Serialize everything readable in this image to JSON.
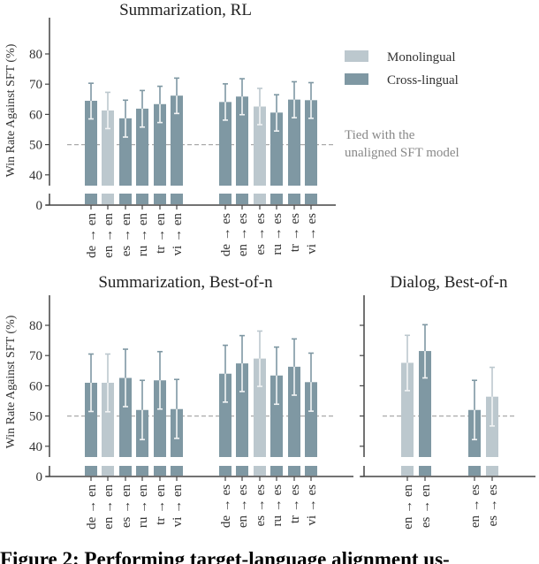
{
  "colors": {
    "cross_lingual": "#7f98a3",
    "monolingual": "#bcc8ce",
    "reference_line": "#aaaaaa"
  },
  "legend": {
    "monolingual": "Monolingual",
    "cross_lingual": "Cross-lingual"
  },
  "annotation": {
    "line1": "Tied with the",
    "line2": "unaligned SFT model"
  },
  "caption": "Figure 2: Performing target-language alignment us-",
  "chart_data": [
    {
      "type": "bar",
      "title": "Summarization, RL",
      "ylabel": "Win Rate Against SFT (%)",
      "yticks": [
        0,
        40,
        50,
        60,
        70,
        80
      ],
      "axis_break": true,
      "reference_line": 50,
      "groups": [
        {
          "categories": [
            "de → en",
            "en → en",
            "es → en",
            "ru → en",
            "tr → en",
            "vi → en"
          ],
          "values": [
            64.5,
            61.3,
            58.7,
            61.9,
            63.4,
            66.2
          ],
          "ci_low": [
            58.5,
            55.3,
            52.5,
            55.8,
            57.3,
            60.3
          ],
          "ci_high": [
            70.3,
            67.3,
            64.7,
            67.9,
            69.3,
            72.0
          ],
          "type": [
            "cross",
            "mono",
            "cross",
            "cross",
            "cross",
            "cross"
          ]
        },
        {
          "categories": [
            "de → es",
            "en → es",
            "es → es",
            "ru → es",
            "tr → es",
            "vi → es"
          ],
          "values": [
            64.1,
            65.9,
            62.6,
            60.6,
            64.9,
            64.7
          ],
          "ci_low": [
            58.1,
            59.9,
            56.6,
            54.5,
            58.9,
            58.7
          ],
          "ci_high": [
            70.1,
            71.8,
            68.6,
            66.5,
            70.8,
            70.5
          ],
          "type": [
            "cross",
            "cross",
            "mono",
            "cross",
            "cross",
            "cross"
          ]
        }
      ]
    },
    {
      "type": "bar",
      "title": "Summarization, Best-of-n",
      "ylabel": "Win Rate Against SFT (%)",
      "yticks": [
        0,
        40,
        50,
        60,
        70,
        80
      ],
      "axis_break": true,
      "reference_line": 50,
      "groups": [
        {
          "categories": [
            "de → en",
            "en → en",
            "es → en",
            "ru → en",
            "tr → en",
            "vi → en"
          ],
          "values": [
            61.0,
            61.0,
            62.6,
            52.0,
            61.8,
            52.3
          ],
          "ci_low": [
            51.5,
            51.4,
            53.1,
            42.2,
            52.3,
            42.6
          ],
          "ci_high": [
            70.5,
            70.5,
            72.1,
            61.8,
            71.3,
            62.1
          ],
          "type": [
            "cross",
            "mono",
            "cross",
            "cross",
            "cross",
            "cross"
          ]
        },
        {
          "categories": [
            "de → es",
            "en → es",
            "es → es",
            "ru → es",
            "tr → es",
            "vi → es"
          ],
          "values": [
            64.0,
            67.4,
            69.0,
            63.4,
            66.3,
            61.2
          ],
          "ci_low": [
            54.6,
            58.1,
            59.8,
            53.9,
            56.9,
            51.6
          ],
          "ci_high": [
            73.4,
            76.6,
            78.1,
            72.8,
            75.5,
            70.8
          ],
          "type": [
            "cross",
            "cross",
            "mono",
            "cross",
            "cross",
            "cross"
          ]
        }
      ]
    },
    {
      "type": "bar",
      "title": "Dialog, Best-of-n",
      "axis_break": true,
      "reference_line": 50,
      "groups": [
        {
          "categories": [
            "en → en",
            "es → en"
          ],
          "values": [
            67.6,
            71.5
          ],
          "ci_low": [
            58.4,
            62.6
          ],
          "ci_high": [
            76.7,
            80.2
          ],
          "type": [
            "mono",
            "cross"
          ]
        },
        {
          "categories": [
            "en → es",
            "es → es"
          ],
          "values": [
            52.0,
            56.4
          ],
          "ci_low": [
            42.2,
            46.7
          ],
          "ci_high": [
            61.8,
            66.1
          ],
          "type": [
            "cross",
            "mono"
          ]
        }
      ]
    }
  ]
}
